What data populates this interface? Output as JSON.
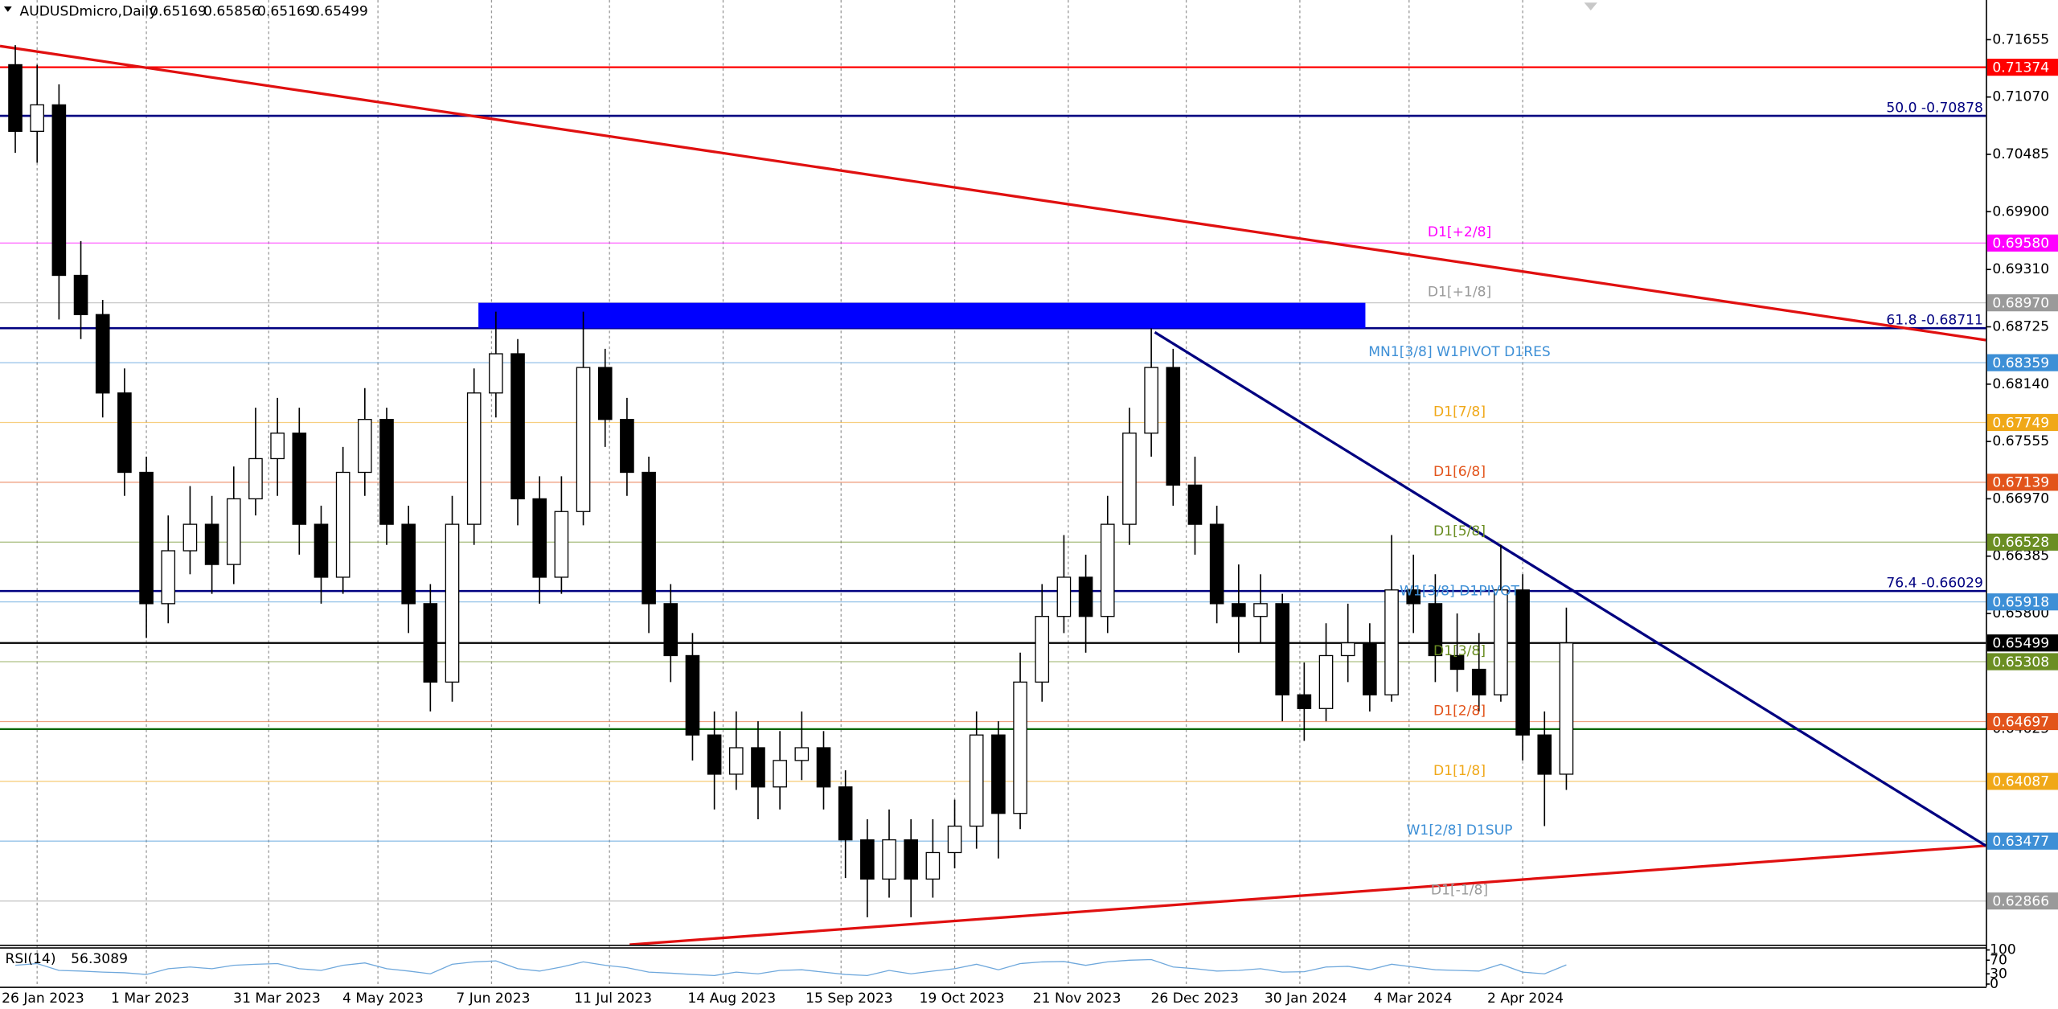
{
  "chart_data": {
    "type": "candlestick",
    "header": {
      "symbol": "AUDUSDmicro,Daily",
      "ohlc": [
        0.65169,
        0.65856,
        0.65169,
        0.65499
      ]
    },
    "xlim": [
      -1.5,
      453
    ],
    "ylim": [
      0.6242,
      0.7206
    ],
    "grid": true,
    "up_color": "#ffffff",
    "down_color": "#000000",
    "xticks": [
      {
        "value": 7,
        "label": "26 Jan 2023"
      },
      {
        "value": 32,
        "label": "1 Mar 2023"
      },
      {
        "value": 60,
        "label": "31 Mar 2023"
      },
      {
        "value": 85,
        "label": "4 May 2023"
      },
      {
        "value": 111,
        "label": "7 Jun 2023"
      },
      {
        "value": 138,
        "label": "11 Jul 2023"
      },
      {
        "value": 164,
        "label": "14 Aug 2023"
      },
      {
        "value": 191,
        "label": "15 Sep 2023"
      },
      {
        "value": 217,
        "label": "19 Oct 2023"
      },
      {
        "value": 243,
        "label": "21 Nov 2023"
      },
      {
        "value": 270,
        "label": "26 Dec 2023"
      },
      {
        "value": 296,
        "label": "30 Jan 2024"
      },
      {
        "value": 321,
        "label": "4 Mar 2024"
      },
      {
        "value": 347,
        "label": "2 Apr 2024"
      }
    ],
    "yticks": [
      {
        "value": 0.71655,
        "label": "0.71655"
      },
      {
        "value": 0.7107,
        "label": "0.71070"
      },
      {
        "value": 0.70485,
        "label": "0.70485"
      },
      {
        "value": 0.699,
        "label": "0.69900"
      },
      {
        "value": 0.6931,
        "label": "0.69310"
      },
      {
        "value": 0.68725,
        "label": "0.68725"
      },
      {
        "value": 0.6814,
        "label": "0.68140"
      },
      {
        "value": 0.67555,
        "label": "0.67555"
      },
      {
        "value": 0.6697,
        "label": "0.66970"
      },
      {
        "value": 0.66385,
        "label": "0.66385"
      },
      {
        "value": 0.658,
        "label": "0.65800"
      },
      {
        "value": 0.64625,
        "label": "0.64625"
      }
    ],
    "candles": {
      "x": [
        2,
        7,
        12,
        17,
        22,
        27,
        32,
        37,
        42,
        47,
        52,
        57,
        62,
        67,
        72,
        77,
        82,
        87,
        92,
        97,
        102,
        107,
        112,
        117,
        122,
        127,
        132,
        137,
        142,
        147,
        152,
        157,
        162,
        167,
        172,
        177,
        182,
        187,
        192,
        197,
        202,
        207,
        212,
        217,
        222,
        227,
        232,
        237,
        242,
        247,
        252,
        257,
        262,
        267,
        272,
        277,
        282,
        287,
        292,
        297,
        302,
        307,
        312,
        317,
        322,
        327,
        332,
        337,
        342,
        347,
        352,
        357
      ],
      "open": [
        0.714,
        0.7072,
        0.7099,
        0.6925,
        0.6885,
        0.6805,
        0.6724,
        0.659,
        0.6644,
        0.6671,
        0.663,
        0.6697,
        0.6738,
        0.6764,
        0.6671,
        0.6617,
        0.6724,
        0.6778,
        0.6671,
        0.659,
        0.651,
        0.6671,
        0.6805,
        0.6845,
        0.6697,
        0.6617,
        0.6684,
        0.6831,
        0.6778,
        0.6724,
        0.659,
        0.6537,
        0.6456,
        0.6416,
        0.6443,
        0.6403,
        0.643,
        0.6443,
        0.6403,
        0.6349,
        0.6309,
        0.6349,
        0.6309,
        0.6336,
        0.6363,
        0.6456,
        0.6376,
        0.651,
        0.6577,
        0.6617,
        0.6577,
        0.6671,
        0.6764,
        0.6831,
        0.6711,
        0.6671,
        0.659,
        0.6577,
        0.659,
        0.6497,
        0.6483,
        0.6537,
        0.655,
        0.6497,
        0.6604,
        0.659,
        0.6537,
        0.6523,
        0.6497,
        0.6604,
        0.6456,
        0.6416
      ],
      "high": [
        0.716,
        0.714,
        0.712,
        0.696,
        0.69,
        0.683,
        0.674,
        0.668,
        0.671,
        0.67,
        0.673,
        0.679,
        0.68,
        0.679,
        0.669,
        0.675,
        0.681,
        0.679,
        0.669,
        0.661,
        0.67,
        0.683,
        0.6888,
        0.686,
        0.672,
        0.672,
        0.6888,
        0.685,
        0.68,
        0.674,
        0.661,
        0.656,
        0.648,
        0.648,
        0.647,
        0.646,
        0.648,
        0.646,
        0.642,
        0.637,
        0.638,
        0.637,
        0.637,
        0.639,
        0.648,
        0.647,
        0.654,
        0.661,
        0.666,
        0.664,
        0.67,
        0.679,
        0.6871,
        0.685,
        0.674,
        0.669,
        0.663,
        0.662,
        0.66,
        0.653,
        0.657,
        0.659,
        0.657,
        0.666,
        0.664,
        0.662,
        0.658,
        0.656,
        0.665,
        0.662,
        0.648,
        0.6586
      ],
      "low": [
        0.705,
        0.704,
        0.688,
        0.686,
        0.678,
        0.67,
        0.6555,
        0.657,
        0.662,
        0.66,
        0.661,
        0.668,
        0.67,
        0.664,
        0.659,
        0.66,
        0.67,
        0.665,
        0.656,
        0.648,
        0.649,
        0.665,
        0.678,
        0.667,
        0.659,
        0.66,
        0.667,
        0.675,
        0.67,
        0.656,
        0.651,
        0.643,
        0.638,
        0.64,
        0.637,
        0.638,
        0.641,
        0.638,
        0.631,
        0.627,
        0.629,
        0.627,
        0.629,
        0.632,
        0.634,
        0.633,
        0.636,
        0.649,
        0.656,
        0.654,
        0.656,
        0.665,
        0.674,
        0.669,
        0.664,
        0.657,
        0.654,
        0.655,
        0.647,
        0.645,
        0.647,
        0.651,
        0.648,
        0.649,
        0.656,
        0.651,
        0.65,
        0.648,
        0.649,
        0.643,
        0.6363,
        0.64
      ],
      "close": [
        0.7072,
        0.7099,
        0.6925,
        0.6885,
        0.6805,
        0.6724,
        0.659,
        0.6644,
        0.6671,
        0.663,
        0.6697,
        0.6738,
        0.6764,
        0.6671,
        0.6617,
        0.6724,
        0.6778,
        0.6671,
        0.659,
        0.651,
        0.6671,
        0.6805,
        0.6845,
        0.6697,
        0.6617,
        0.6684,
        0.6831,
        0.6778,
        0.6724,
        0.659,
        0.6537,
        0.6456,
        0.6416,
        0.6443,
        0.6403,
        0.643,
        0.6443,
        0.6403,
        0.6349,
        0.6309,
        0.6349,
        0.6309,
        0.6336,
        0.6363,
        0.6456,
        0.6376,
        0.651,
        0.6577,
        0.6617,
        0.6577,
        0.6671,
        0.6764,
        0.6831,
        0.6711,
        0.6671,
        0.659,
        0.6577,
        0.659,
        0.6497,
        0.6483,
        0.6537,
        0.655,
        0.6497,
        0.6604,
        0.659,
        0.6537,
        0.6523,
        0.6497,
        0.6604,
        0.6456,
        0.6416,
        0.65499
      ]
    },
    "levels": [
      {
        "price": 0.71374,
        "color": "#ff0000",
        "price_label": "0.71374"
      },
      {
        "price": 0.70878,
        "color": "#000080",
        "style": "fib",
        "text": "50.0 -0.70878"
      },
      {
        "price": 0.6958,
        "color": "#ff00ff",
        "text": "D1[+2/8]",
        "price_label": "0.69580"
      },
      {
        "price": 0.6897,
        "color": "#9a9a9a",
        "text": "D1[+1/8]",
        "price_label": "0.68970"
      },
      {
        "price": 0.68711,
        "color": "#000080",
        "style": "fib",
        "text": "61.8 -0.68711"
      },
      {
        "price": 0.68359,
        "color": "#3d8fd6",
        "text": "MN1[3/8] W1PIVOT D1RES",
        "price_label": "0.68359"
      },
      {
        "price": 0.67749,
        "color": "#f0a818",
        "text": "D1[7/8]",
        "price_label": "0.67749"
      },
      {
        "price": 0.67139,
        "color": "#e2541b",
        "text": "D1[6/8]",
        "price_label": "0.67139"
      },
      {
        "price": 0.66528,
        "color": "#6b8e23",
        "text": "D1[5/8]",
        "price_label": "0.66528"
      },
      {
        "price": 0.66029,
        "color": "#000080",
        "style": "fib",
        "text": "76.4 -0.66029"
      },
      {
        "price": 0.65918,
        "color": "#3d8fd6",
        "text": "W1[3/8] D1PIVOT",
        "price_label": "0.65918"
      },
      {
        "price": 0.65499,
        "color": "#000000",
        "price_label": "0.65499"
      },
      {
        "price": 0.65308,
        "color": "#6b8e23",
        "text": "D1[3/8]",
        "price_label": "0.65308"
      },
      {
        "price": 0.64697,
        "color": "#e2541b",
        "text": "D1[2/8]",
        "price_label": "0.64697"
      },
      {
        "price": 0.6462,
        "color": "#006400"
      },
      {
        "price": 0.64087,
        "color": "#f0a818",
        "text": "D1[1/8]",
        "price_label": "0.64087"
      },
      {
        "price": 0.63477,
        "color": "#3d8fd6",
        "text": "W1[2/8] D1SUP",
        "price_label": "0.63477"
      },
      {
        "price": 0.62866,
        "color": "#9a9a9a",
        "text": "D1[-1/8]",
        "price_label": "0.62866"
      }
    ],
    "zone": {
      "x": [
        108,
        311
      ],
      "price": [
        0.6871,
        0.6897
      ],
      "color": "#0000ff"
    },
    "trendlines": [
      {
        "x": [
          -1.5,
          453
        ],
        "price": [
          0.7159,
          0.6859
        ],
        "color": "#e01010"
      },
      {
        "x": [
          142.6,
          453
        ],
        "price": [
          0.6242,
          0.6343
        ],
        "color": "#e01010"
      },
      {
        "x": [
          262.8,
          453
        ],
        "price": [
          0.6867,
          0.6343
        ],
        "color": "#000080"
      }
    ],
    "rsi": {
      "name": "RSI(14)",
      "color": "#6fa8dc",
      "ylim": [
        0,
        100
      ],
      "yticks": [
        100,
        70,
        30,
        0
      ],
      "values": [
        55,
        60,
        40,
        38,
        35,
        33,
        28,
        45,
        50,
        45,
        55,
        58,
        60,
        45,
        40,
        55,
        62,
        45,
        38,
        30,
        58,
        65,
        68,
        45,
        38,
        50,
        65,
        55,
        48,
        35,
        32,
        28,
        25,
        35,
        30,
        40,
        42,
        35,
        28,
        25,
        40,
        30,
        38,
        45,
        58,
        42,
        60,
        65,
        66,
        55,
        65,
        70,
        72,
        50,
        45,
        38,
        40,
        45,
        35,
        36,
        50,
        52,
        42,
        58,
        50,
        42,
        40,
        38,
        58,
        35,
        30,
        56.3089
      ]
    }
  }
}
